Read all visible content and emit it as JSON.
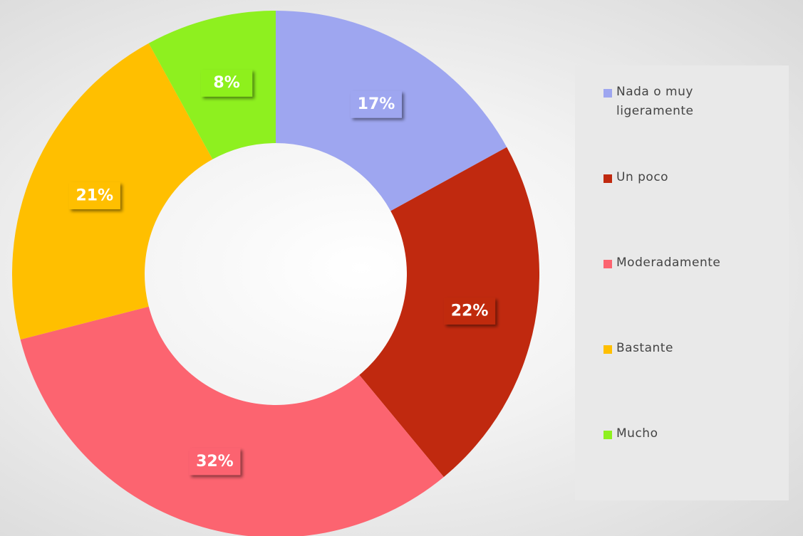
{
  "chart_data": {
    "type": "donut",
    "categories": [
      "Nada o muy ligeramente",
      "Un poco",
      "Moderadamente",
      "Bastante",
      "Mucho"
    ],
    "values": [
      17,
      22,
      32,
      21,
      8
    ],
    "value_labels": [
      "17%",
      "22%",
      "32%",
      "21%",
      "8%"
    ],
    "colors": [
      "#9ea6f0",
      "#c0290f",
      "#fc6470",
      "#ffbf00",
      "#8ef01f"
    ],
    "legend": "right"
  }
}
